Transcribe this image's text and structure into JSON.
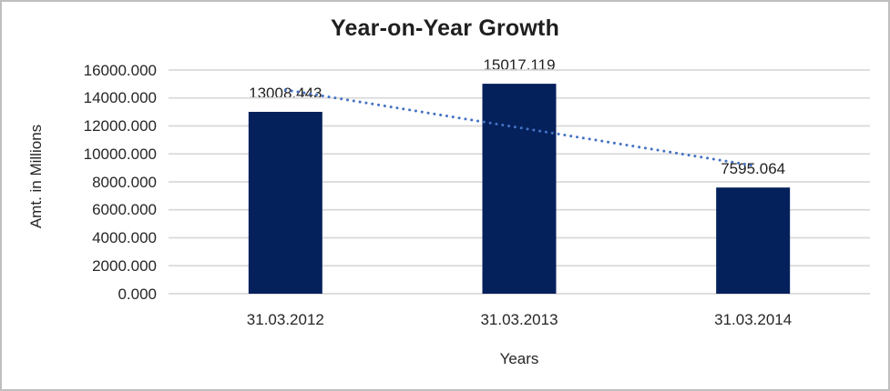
{
  "chart_data": {
    "type": "bar",
    "title": "Year-on-Year Growth",
    "xlabel": "Years",
    "ylabel": "Amt. in Millions",
    "categories": [
      "31.03.2012",
      "31.03.2013",
      "31.03.2014"
    ],
    "values": [
      13008.443,
      15017.119,
      7595.064
    ],
    "data_labels": [
      "13008.443",
      "15017.119",
      "7595.064"
    ],
    "ylim": [
      0,
      16000
    ],
    "ytick_step": 2000,
    "ytick_labels": [
      "0.000",
      "2000.000",
      "4000.000",
      "6000.000",
      "8000.000",
      "10000.000",
      "12000.000",
      "14000.000",
      "16000.000"
    ],
    "grid": true,
    "legend": "none",
    "trendline": {
      "type": "linear",
      "style": "dotted",
      "start_value": 14580,
      "end_value": 9170
    },
    "colors": {
      "bar": "#04215c",
      "trendline": "#4472c4",
      "gridline": "#d9d9d9",
      "text": "#262626",
      "frame": "#bfbfbf",
      "background": "#ffffff"
    }
  }
}
